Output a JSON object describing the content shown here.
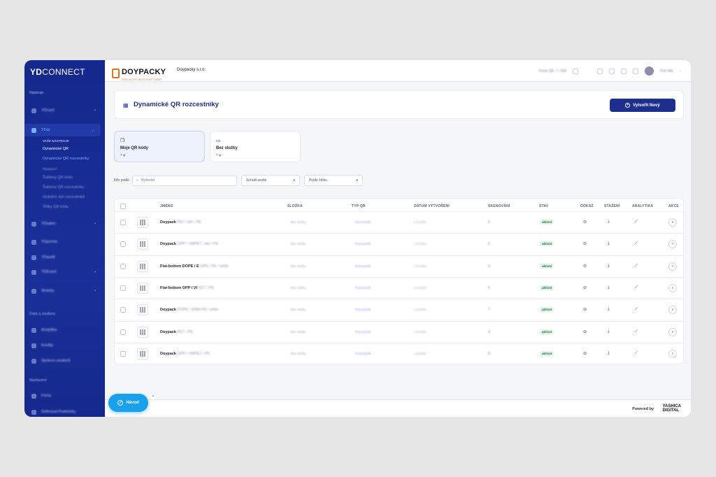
{
  "sidebar": {
    "logo_bold": "YD",
    "logo_thin": "CONNECT",
    "section_tools": "Nástroje",
    "items": [
      {
        "label": "YDcard"
      },
      {
        "label": "YDqr"
      },
      {
        "label": "YDsales"
      },
      {
        "label": "YDpromo"
      },
      {
        "label": "YDaudit"
      },
      {
        "label": "YDEvent"
      },
      {
        "label": "Stránky"
      }
    ],
    "sub_heading": "VAŠE NÁSTROJE",
    "sub_items": [
      "Dynamické QR",
      "Dynamické QR rozcestníky"
    ],
    "sub_heading2": "Nastavení",
    "sub_items2": [
      "Šablony QR kódu",
      "Šablony QR rozcestníku",
      "Globální styl rozcestníků",
      "Štítky QR kódu"
    ],
    "section_data": "Data a soubory",
    "data_items": [
      {
        "label": "Analytika"
      },
      {
        "label": "Kredity"
      },
      {
        "label": "Správce souborů"
      }
    ],
    "section_settings": "Nastavení",
    "settings_items": [
      {
        "label": "Firma"
      },
      {
        "label": "Definovat Podmínky"
      }
    ]
  },
  "topbar": {
    "brand": "DOYPACKY",
    "brand_tag": "SPECIALISTÉ NA STOJACÍ SÁČKY",
    "company": "Doypacky s.r.o.",
    "qr_count": "Počet QR: 7 / 500",
    "user": "Petr Win"
  },
  "header": {
    "title": "Dynamické QR rozcestníky",
    "new_button": "Vytvořit Nový"
  },
  "tiles": [
    {
      "name": "Moje QR kódy",
      "count": "7 qr"
    },
    {
      "name": "Bez složky",
      "count": "7 qr"
    }
  ],
  "filters": {
    "label": "Filtr podle",
    "search_placeholder": "Vyhledat",
    "sort_label": "Seřadit podle",
    "tag_label": "Podle štítku"
  },
  "table": {
    "columns": [
      "JMÉNO",
      "SLOŽKA",
      "TYP QR",
      "DATUM VYTVOŘENÍ",
      "SKENOVÁNÍ",
      "STAV",
      "ODKAZ",
      "STAŽENÍ",
      "ANALYTIKA",
      "AKCE"
    ],
    "rows": [
      {
        "name": "Doypack",
        "name_rest": "PET / AH / PE",
        "folder": "Bez složky",
        "type": "Rozcestník",
        "date": "1.5.2024",
        "scans": "5",
        "status": "aktivní"
      },
      {
        "name": "Doypack",
        "name_rest": "OPP / VMPET / AH / PE",
        "folder": "Bez složky",
        "type": "Rozcestník",
        "date": "1.5.2024",
        "scans": "5",
        "status": "aktivní"
      },
      {
        "name": "Flat-bottom DOPE / E",
        "name_rest": "OPE / PE / white",
        "folder": "Bez složky",
        "type": "Rozcestník",
        "date": "1.5.2024",
        "scans": "3",
        "status": "aktivní"
      },
      {
        "name": "Flat-bottom OPP / VI",
        "name_rest": "PET / PE",
        "folder": "Bez složky",
        "type": "Rozcestník",
        "date": "1.5.2024",
        "scans": "5",
        "status": "aktivní"
      },
      {
        "name": "Doypack",
        "name_rest": "DOPE / DNM-PE / white",
        "folder": "Bez složky",
        "type": "Rozcestník",
        "date": "1.5.2024",
        "scans": "7",
        "status": "aktivní"
      },
      {
        "name": "Doypack",
        "name_rest": "PET / PE",
        "folder": "Bez složky",
        "type": "Rozcestník",
        "date": "1.5.2024",
        "scans": "4",
        "status": "aktivní"
      },
      {
        "name": "Doypack",
        "name_rest": "OPP / VMPET / PE",
        "folder": "Bez složky",
        "type": "Rozcestník",
        "date": "1.5.2024",
        "scans": "8",
        "status": "aktivní"
      }
    ]
  },
  "footer": {
    "powered": "Powered by",
    "brand_line1": "YASHICA",
    "brand_line2": "DIGITAL"
  },
  "guide": {
    "label": "Návod",
    "close": "×"
  }
}
